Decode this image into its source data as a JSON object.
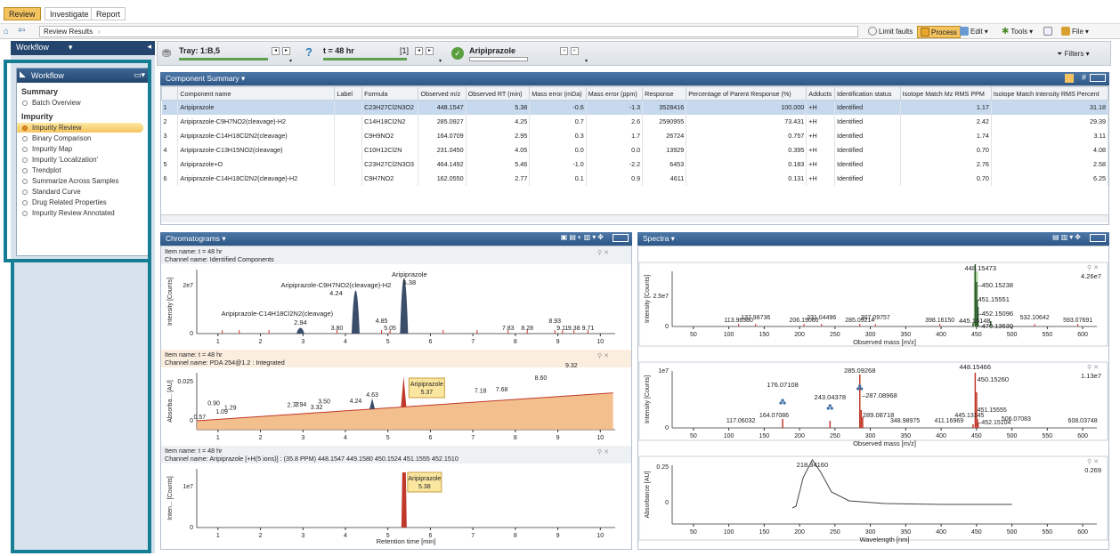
{
  "menu": {
    "tabs": [
      "Review",
      "Investigate",
      "Report"
    ]
  },
  "nav": {
    "breadcrumb": "Review Results",
    "limit_faults": "Limit faults",
    "process": "Process",
    "edit": "Edit",
    "tools": "Tools",
    "file": "File",
    "filters": "Filters"
  },
  "sidebar": {
    "header": "Workflow",
    "panel_title": "Workflow",
    "summary_title": "Summary",
    "summary_items": [
      "Batch Overview"
    ],
    "impurity_title": "Impurity",
    "impurity_items": [
      "Impurity Review",
      "Binary Comparison",
      "Impurity Map",
      "Impurity 'Localization'",
      "Trendplot",
      "Summarize Across Samples",
      "Standard Curve",
      "Drug Related Properties",
      "Impurity Review Annotated"
    ],
    "active_item": "Impurity Review"
  },
  "infobar": {
    "tray": "Tray: 1:B,5",
    "time": "t = 48 hr",
    "index": "[1]",
    "compound": "Aripiprazole"
  },
  "component_summary": {
    "title": "Component Summary",
    "columns": [
      "",
      "Component name",
      "Label",
      "Formula",
      "Observed m/z",
      "Observed RT (min)",
      "Mass error (mDa)",
      "Mass error (ppm)",
      "Response",
      "Percentage of Parent Response (%)",
      "Adducts",
      "Identification status",
      "Isotope Match Mz RMS PPM",
      "Isotope Match Intensity RMS Percent"
    ],
    "rows": [
      [
        "1",
        "Aripiprazole",
        "",
        "C23H27Cl2N3O2",
        "448.1547",
        "5.38",
        "-0.6",
        "-1.3",
        "3528416",
        "100.000",
        "+H",
        "Identified",
        "1.17",
        "31.18"
      ],
      [
        "2",
        "Aripiprazole-C9H7NO2(cleavage)-H2",
        "",
        "C14H18Cl2N2",
        "285.0927",
        "4.25",
        "0.7",
        "2.6",
        "2590955",
        "73.431",
        "+H",
        "Identified",
        "2.42",
        "29.39"
      ],
      [
        "3",
        "Aripiprazole-C14H18Cl2N2(cleavage)",
        "",
        "C9H9NO2",
        "164.0709",
        "2.95",
        "0.3",
        "1.7",
        "26724",
        "0.757",
        "+H",
        "Identified",
        "1.74",
        "3.11"
      ],
      [
        "4",
        "Aripiprazole-C13H15NO2(cleavage)",
        "",
        "C10H12Cl2N",
        "231.0450",
        "4.05",
        "0.0",
        "0.0",
        "13929",
        "0.395",
        "+H",
        "Identified",
        "0.70",
        "4.08"
      ],
      [
        "5",
        "Aripiprazole+O",
        "",
        "C23H27Cl2N3O3",
        "464.1492",
        "5.46",
        "-1.0",
        "-2.2",
        "6453",
        "0.183",
        "+H",
        "Identified",
        "2.76",
        "2.58"
      ],
      [
        "6",
        "Aripiprazole-C14H18Cl2N2(cleavage)-H2",
        "",
        "C9H7NO2",
        "162.0550",
        "2.77",
        "0.1",
        "0.9",
        "4611",
        "0.131",
        "+H",
        "Identified",
        "0.70",
        "6.25"
      ]
    ]
  },
  "chromatograms": {
    "title": "Chromatograms",
    "xlabel": "Retention time [min]",
    "xticks": [
      "1",
      "2",
      "3",
      "4",
      "5",
      "6",
      "7",
      "8",
      "9",
      "10"
    ],
    "plots": [
      {
        "item": "Item name: t = 48 hr",
        "channel": "Channel name: Identified Components",
        "ylabel": "Intensity [Counts]",
        "ytick": "2e7",
        "labels": [
          "Aripiprazole-C9H7NO2(cleavage)-H2",
          "4.24",
          "Aripiprazole",
          "5.38",
          "Aripiprazole-C14H18Cl2N2(cleavage)",
          "2.94",
          "3.80",
          "4.85",
          "5.05",
          "7.83",
          "8.28",
          "8.93",
          "9.11",
          "9.38",
          "9.71"
        ]
      },
      {
        "item": "Item name: t = 48 hr",
        "channel": "Channel name: PDA 254@1.2 : Integrated",
        "ylabel": "Absorba... [AU]",
        "yticks": [
          "0.025",
          "0"
        ],
        "labels": [
          "0.57",
          "0.90",
          "1.09",
          "1.29",
          "2.77",
          "2.94",
          "3.32",
          "3.50",
          "4.24",
          "4.63",
          "7.18",
          "7.68",
          "8.60",
          "9.32"
        ],
        "callout": [
          "Aripiprazole",
          "5.37"
        ]
      },
      {
        "item": "Item name: t = 48 hr",
        "channel": "Channel name: Aripiprazole [+H(5 ions)] : (35.8 PPM) 448.1547 449.1580 450.1524 451.1555 452.1510",
        "ylabel": "Inten... [Counts]",
        "ytick": "1e7",
        "callout": [
          "Aripiprazole",
          "5.38"
        ]
      }
    ]
  },
  "spectra": {
    "title": "Spectra",
    "xticks": [
      "50",
      "100",
      "150",
      "200",
      "250",
      "300",
      "350",
      "400",
      "450",
      "500",
      "550",
      "600"
    ],
    "plots": [
      {
        "ylabel": "Intensity [Counts]",
        "ytick": "2.5e7",
        "max": "4.26e7",
        "xlabel": "Observed mass [m/z]",
        "labels": [
          "448.15473",
          "450.15238",
          "451.15551",
          "452.15096",
          "470.13630",
          "445.13148",
          "113.96380",
          "137.98736",
          "206.19060",
          "231.04496",
          "285.09214",
          "307.09757",
          "398.16150",
          "532.10642",
          "593.07691"
        ]
      },
      {
        "ylabel": "Intensity [Counts]",
        "ytick": "1e7",
        "max": "1.13e7",
        "xlabel": "Observed mass [m/z]",
        "labels": [
          "285.09268",
          "448.15466",
          "450.15260",
          "176.07108",
          "243.04378",
          "287.08968",
          "289.08718",
          "164.07086",
          "117.06032",
          "348.98975",
          "411.16969",
          "445.13145",
          "451.15555",
          "452.15104",
          "506.07083",
          "608.03748"
        ]
      },
      {
        "ylabel": "Absorbance [AU]",
        "yticks": [
          "0.25",
          "0"
        ],
        "max": "0.269",
        "xlabel": "Wavelength [nm]",
        "peak": "218.34160"
      }
    ]
  }
}
